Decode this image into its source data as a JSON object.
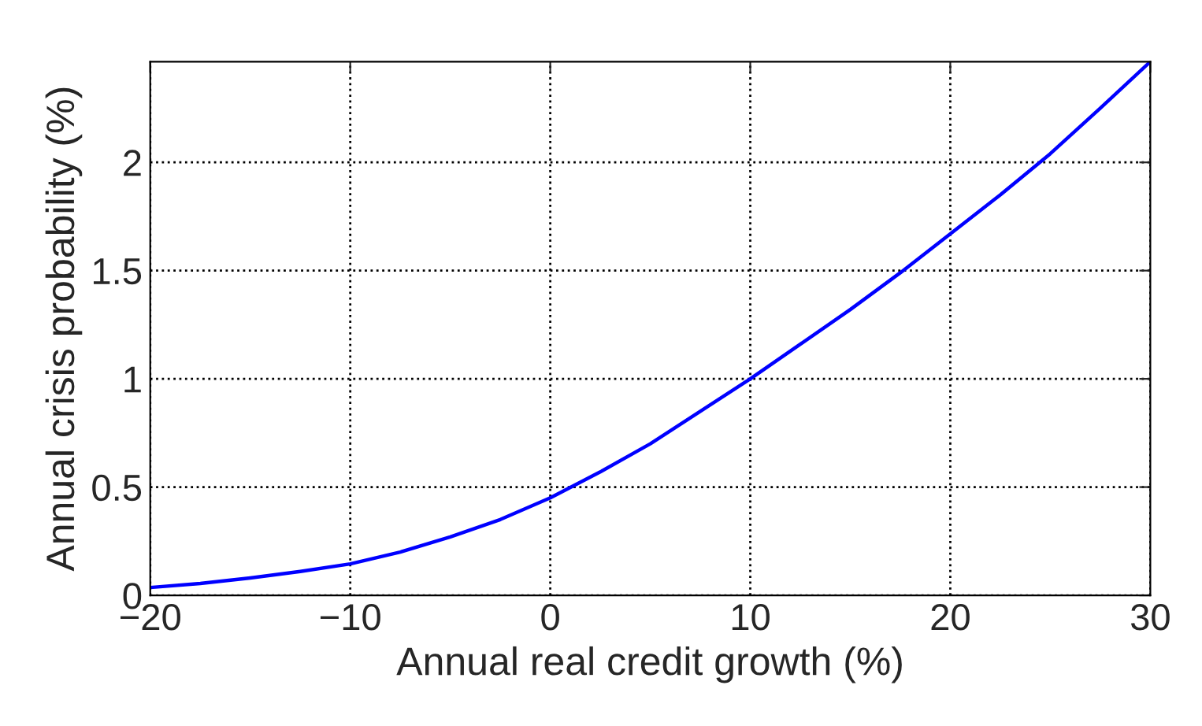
{
  "chart_data": {
    "type": "line",
    "xlabel": "Annual real credit growth (%)",
    "ylabel": "Annual crisis probability (%)",
    "x": [
      -20,
      -17.5,
      -15,
      -12.5,
      -10,
      -7.5,
      -5,
      -2.5,
      0,
      2.5,
      5,
      7.5,
      10,
      12.5,
      15,
      17.5,
      20,
      22.5,
      25,
      27.5,
      30
    ],
    "series": [
      {
        "color": "#0000ff",
        "values": [
          0.036,
          0.055,
          0.08,
          0.11,
          0.145,
          0.2,
          0.27,
          0.35,
          0.45,
          0.57,
          0.7,
          0.85,
          1.0,
          1.16,
          1.32,
          1.49,
          1.67,
          1.85,
          2.04,
          2.25,
          2.465
        ]
      }
    ],
    "xlim": [
      -20,
      30
    ],
    "xticks": [
      {
        "value": -20,
        "label": "−20"
      },
      {
        "value": -10,
        "label": "−10"
      },
      0,
      10,
      20,
      30
    ],
    "ylim": [
      0,
      2.465
    ],
    "yticks": [
      0,
      0.5,
      1,
      1.5,
      2
    ],
    "grid": true,
    "line_style": "solid",
    "marker": "none"
  }
}
